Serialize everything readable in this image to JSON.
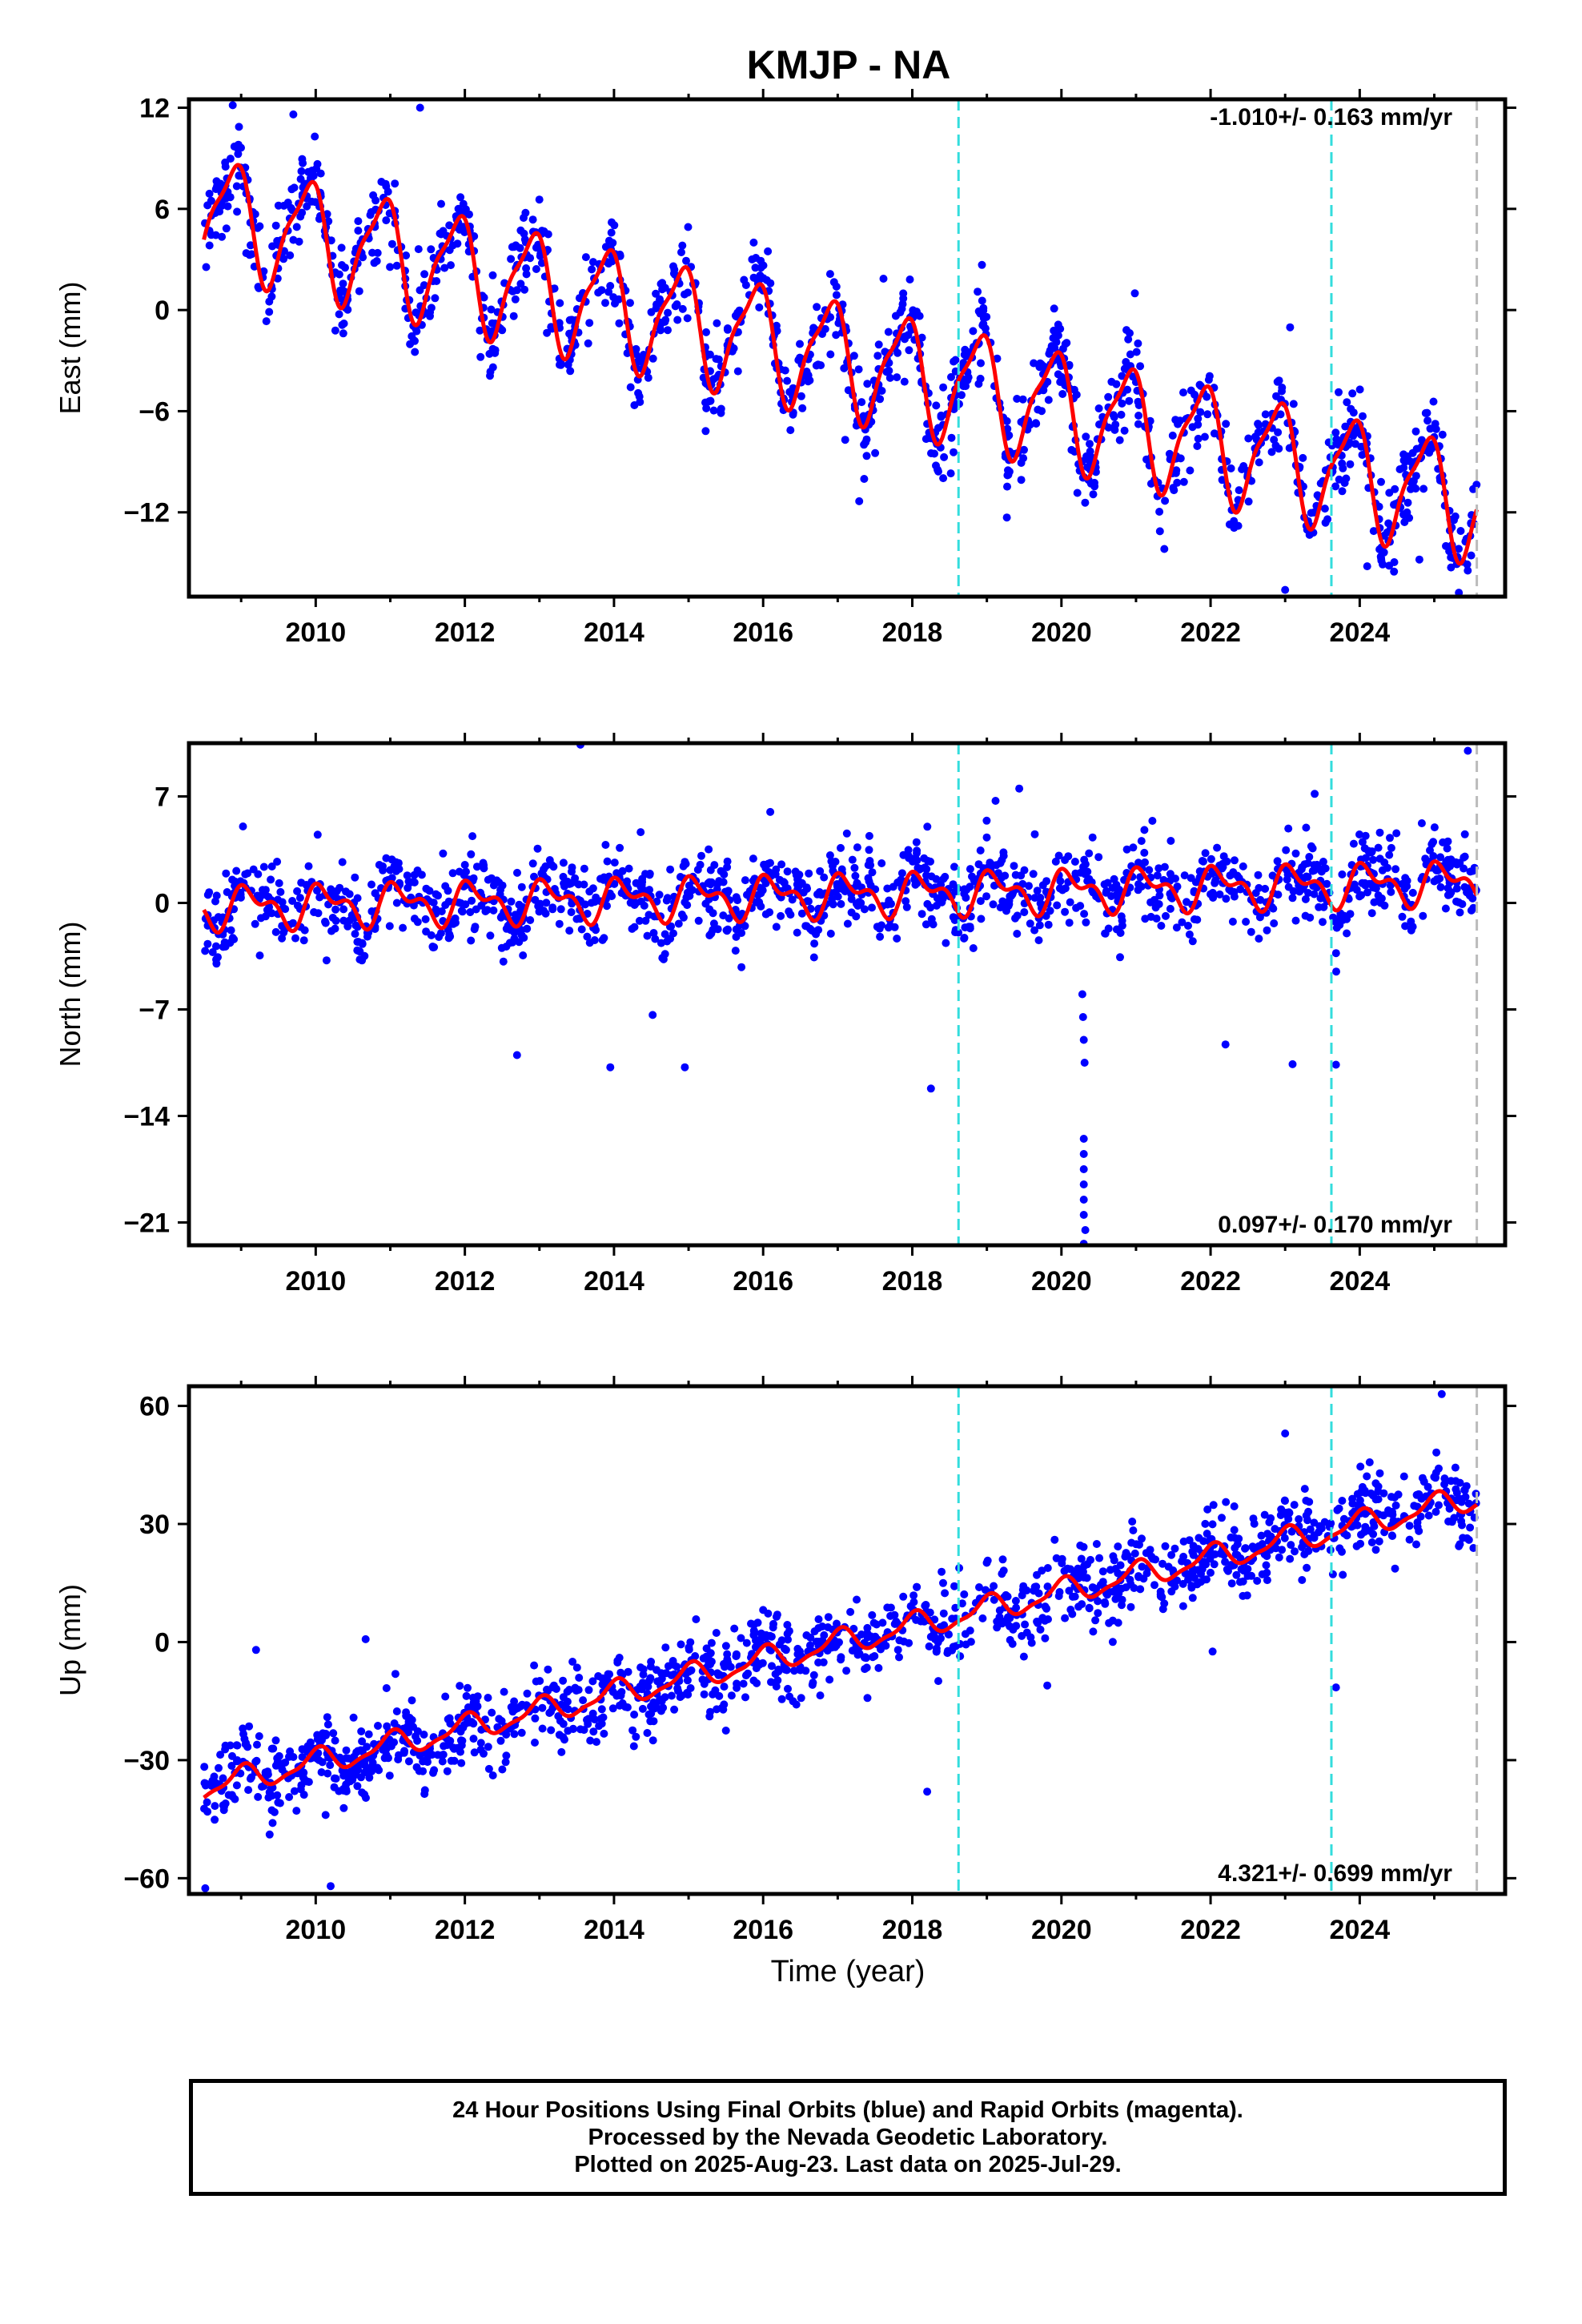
{
  "chart_data": {
    "title": "KMJP - NA",
    "type": "scatter",
    "xlabel": "Time (year)",
    "xlim": [
      2008.3,
      2025.95
    ],
    "x_ticks": [
      "2010",
      "2012",
      "2014",
      "2016",
      "2018",
      "2020",
      "2022",
      "2024"
    ],
    "x_tick_values": [
      2010,
      2012,
      2014,
      2016,
      2018,
      2020,
      2022,
      2024
    ],
    "vertical_markers": [
      {
        "x": 2018.62,
        "color": "#33dddd",
        "style": "dashed"
      },
      {
        "x": 2023.62,
        "color": "#33dddd",
        "style": "dashed"
      },
      {
        "x": 2025.57,
        "color": "#bbbbbb",
        "style": "dashed"
      }
    ],
    "colors": {
      "observations": "#0000ff",
      "model_fit": "#ff0000",
      "station_marker": "#33dddd",
      "last_data_marker": "#bbbbbb"
    },
    "first_data_year": 2008.5,
    "last_data_year": 2025.57,
    "panels": [
      {
        "id": "east",
        "ylabel": "East (mm)",
        "ylim": [
          -17,
          12.5
        ],
        "y_ticks": [
          "12",
          "6",
          "0",
          "−6",
          "−12"
        ],
        "y_tick_values": [
          12,
          6,
          0,
          -6,
          -12
        ],
        "rate_label": "-1.010+/- 0.163 mm/yr",
        "rate_position": "top-right",
        "series": [
          {
            "name": "observations",
            "type": "scatter",
            "color": "#0000ff",
            "model": {
              "offset": 5.8,
              "rate": -1.01,
              "annual_amp": 3.2,
              "annual_phase": 2.3,
              "semi_amp": 0.9,
              "semi_phase": 1.0,
              "noise": 1.2
            },
            "outliers": [
              [
                2011.4,
                12.0
              ],
              [
                2009.7,
                11.6
              ],
              [
                2023.0,
                -16.6
              ],
              [
                2024.1,
                -15.2
              ],
              [
                2024.8,
                -14.8
              ],
              [
                2025.2,
                -14.3
              ],
              [
                2016.4,
                -6.2
              ],
              [
                2017.1,
                -7.7
              ]
            ]
          },
          {
            "name": "model_fit",
            "type": "line",
            "color": "#ff0000"
          }
        ]
      },
      {
        "id": "north",
        "ylabel": "North (mm)",
        "ylim": [
          -22.5,
          10.5
        ],
        "y_ticks": [
          "7",
          "0",
          "−7",
          "−14",
          "−21"
        ],
        "y_tick_values": [
          7,
          0,
          -7,
          -14,
          -21
        ],
        "rate_label": "0.097+/- 0.170 mm/yr",
        "rate_position": "bottom-right",
        "series": [
          {
            "name": "observations",
            "type": "scatter",
            "color": "#0000ff",
            "model": {
              "offset": -0.3,
              "rate": 0.097,
              "annual_amp": 1.1,
              "annual_phase": 0.8,
              "semi_amp": 0.7,
              "semi_phase": 2.0,
              "noise": 1.3
            },
            "outliers": [
              [
                2013.55,
                10.4
              ],
              [
                2025.45,
                10.0
              ],
              [
                2018.25,
                -12.2
              ],
              [
                2012.7,
                -10.0
              ],
              [
                2013.95,
                -10.8
              ],
              [
                2014.95,
                -10.8
              ],
              [
                2022.2,
                -9.3
              ],
              [
                2023.1,
                -10.6
              ],
              [
                2020.3,
                -15.5
              ],
              [
                2020.3,
                -16.5
              ],
              [
                2020.3,
                -17.5
              ],
              [
                2020.3,
                -18.5
              ],
              [
                2020.3,
                -19.5
              ],
              [
                2020.3,
                -20.5
              ],
              [
                2020.32,
                -21.5
              ],
              [
                2020.3,
                -22.4
              ],
              [
                2020.28,
                -6.0
              ],
              [
                2020.29,
                -7.5
              ],
              [
                2020.3,
                -9.0
              ],
              [
                2020.31,
                -10.5
              ]
            ]
          },
          {
            "name": "model_fit",
            "type": "line",
            "color": "#ff0000"
          }
        ]
      },
      {
        "id": "up",
        "ylabel": "Up (mm)",
        "ylim": [
          -64,
          65
        ],
        "y_ticks": [
          "60",
          "30",
          "0",
          "−30",
          "−60"
        ],
        "y_tick_values": [
          60,
          30,
          0,
          -30,
          -60
        ],
        "rate_label": "4.321+/- 0.699 mm/yr",
        "rate_position": "bottom-right",
        "series": [
          {
            "name": "observations",
            "type": "scatter",
            "color": "#0000ff",
            "model": {
              "offset": -37.0,
              "rate": 4.32,
              "annual_amp": 3.0,
              "annual_phase": 1.5,
              "semi_amp": 1.0,
              "semi_phase": 0.5,
              "noise": 5.0
            },
            "outliers": [
              [
                2025.1,
                63.0
              ],
              [
                2010.2,
                -62.0
              ],
              [
                2009.2,
                -2.0
              ],
              [
                2018.2,
                -38.0
              ],
              [
                2023.0,
                53.0
              ]
            ]
          },
          {
            "name": "model_fit",
            "type": "line",
            "color": "#ff0000"
          }
        ]
      }
    ]
  },
  "footer": {
    "line1": "24 Hour Positions Using Final Orbits (blue) and Rapid Orbits (magenta).",
    "line2": "Processed by the Nevada Geodetic Laboratory.",
    "line3": "Plotted on 2025-Aug-23. Last data on 2025-Jul-29."
  }
}
